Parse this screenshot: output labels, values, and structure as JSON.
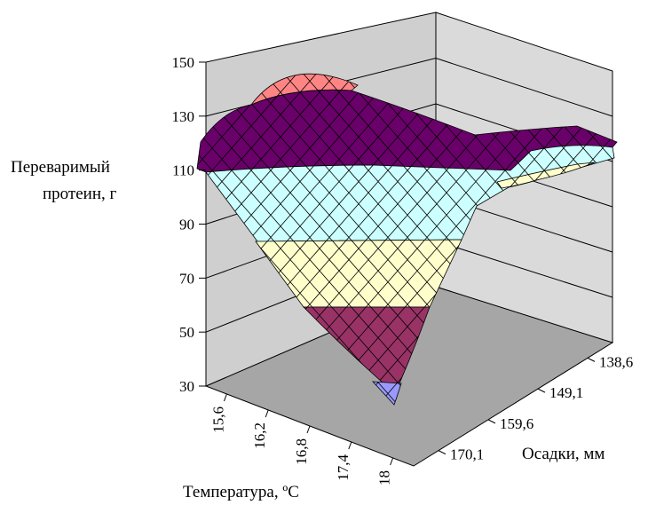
{
  "chart_data": {
    "type": "surface",
    "zlabel_lines": [
      "Переваримый",
      "протеин, г"
    ],
    "xlabel": "Температура, ºС",
    "ylabel": "Осадки, мм",
    "x_ticks": [
      "15,6",
      "16,2",
      "16,8",
      "17,4",
      "18"
    ],
    "y_ticks": [
      "170,1",
      "159,6",
      "149,1",
      "138,6"
    ],
    "z_ticks": [
      "30",
      "50",
      "70",
      "90",
      "110",
      "130",
      "150"
    ],
    "zlim": [
      30,
      150
    ],
    "colors": {
      "grid": "#000000",
      "floor": "#a6a6a6",
      "left_wall": "#cccccc",
      "back_wall": "#d9d9d9",
      "band_30_50": "#9999ff",
      "band_50_70": "#993366",
      "band_70_90": "#ffffcc",
      "band_90_110": "#ccffff",
      "band_110_130": "#660066",
      "band_130_150": "#ff8080"
    }
  }
}
